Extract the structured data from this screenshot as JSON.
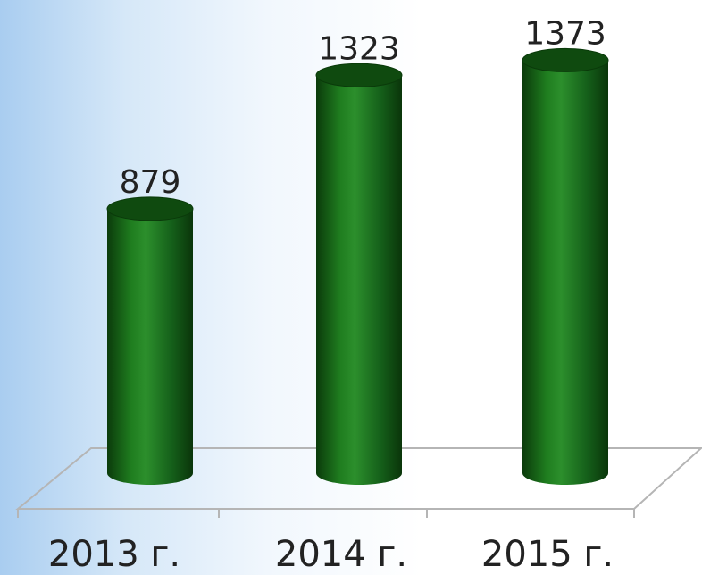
{
  "chart_data": {
    "type": "bar",
    "style": "3d-cylinder",
    "categories": [
      "2013 г.",
      "2014 г.",
      "2015 г."
    ],
    "values": [
      879,
      1323,
      1373
    ],
    "title": "",
    "xlabel": "",
    "ylabel": "",
    "data_labels": [
      "879",
      "1323",
      "1373"
    ],
    "grid": false,
    "legend": "none",
    "colors": {
      "bar": "#1e7a1e",
      "bar_dark": "#0c3f0c",
      "bar_top": "#0f4a0f",
      "floor_line": "#b5b5b5",
      "text": "#222222"
    }
  }
}
